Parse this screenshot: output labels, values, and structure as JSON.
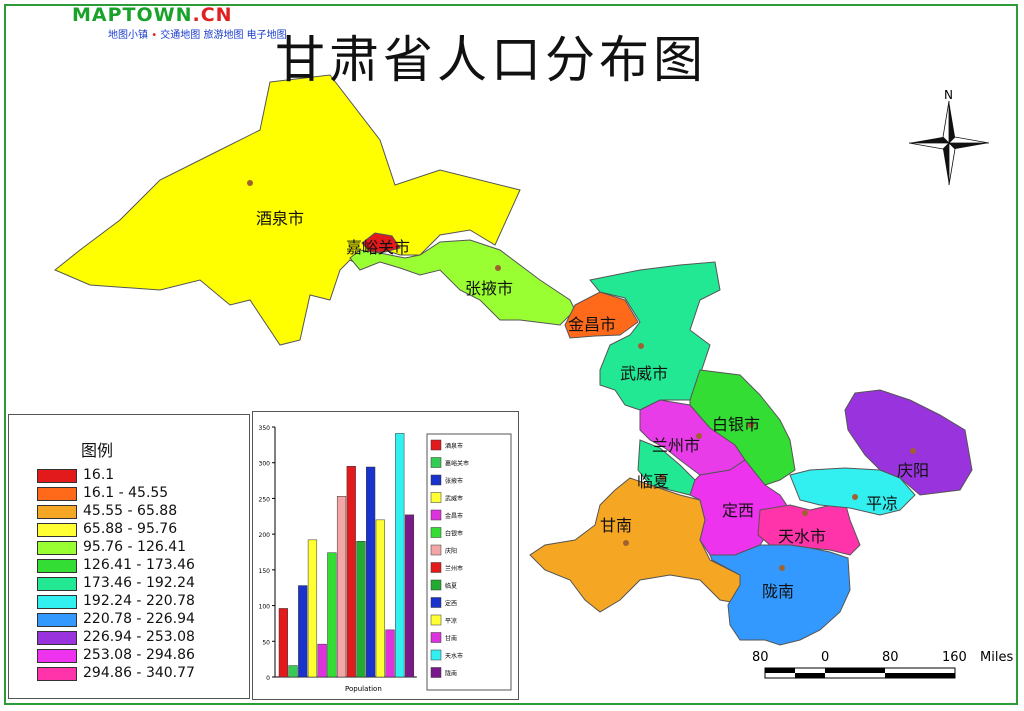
{
  "header": {
    "logo_main": "MAPTOWN",
    "logo_suffix": ".CN",
    "links": [
      "地图小镇",
      "交通地图",
      "旅游地图",
      "电子地图"
    ],
    "title": "甘肃省人口分布图"
  },
  "compass": {
    "north_label": "N"
  },
  "regions": [
    {
      "name": "酒泉市",
      "color": "#ffff00"
    },
    {
      "name": "嘉峪关市",
      "color": "#e31a1c"
    },
    {
      "name": "张掖市",
      "color": "#99ff33"
    },
    {
      "name": "金昌市",
      "color": "#ff6a1a"
    },
    {
      "name": "武威市",
      "color": "#22e894"
    },
    {
      "name": "白银市",
      "color": "#33dd33"
    },
    {
      "name": "兰州市",
      "color": "#e83ce8"
    },
    {
      "name": "临夏",
      "color": "#22e894"
    },
    {
      "name": "甘南",
      "color": "#f5a623"
    },
    {
      "name": "定西",
      "color": "#ee33ee"
    },
    {
      "name": "天水市",
      "color": "#ff33aa"
    },
    {
      "name": "陇南",
      "color": "#3399ff"
    },
    {
      "name": "平凉",
      "color": "#33f0f0"
    },
    {
      "name": "庆阳",
      "color": "#9933dd"
    }
  ],
  "legend": {
    "title": "图例",
    "items": [
      {
        "label": "16.1",
        "color": "#e31a1c"
      },
      {
        "label": "16.1 - 45.55",
        "color": "#ff6a1a"
      },
      {
        "label": "45.55 - 65.88",
        "color": "#f5a623"
      },
      {
        "label": "65.88 - 95.76",
        "color": "#ffff33"
      },
      {
        "label": "95.76 - 126.41",
        "color": "#99ff33"
      },
      {
        "label": "126.41 - 173.46",
        "color": "#33dd33"
      },
      {
        "label": "173.46 - 192.24",
        "color": "#22e894"
      },
      {
        "label": "192.24 - 220.78",
        "color": "#33f0f0"
      },
      {
        "label": "220.78 - 226.94",
        "color": "#3399ff"
      },
      {
        "label": "226.94 - 253.08",
        "color": "#9933dd"
      },
      {
        "label": "253.08 - 294.86",
        "color": "#ee33ee"
      },
      {
        "label": "294.86 - 340.77",
        "color": "#ff33aa"
      }
    ]
  },
  "chart_data": {
    "type": "bar",
    "xlabel": "Population",
    "ylim": [
      0,
      350
    ],
    "yticks": [
      0,
      50,
      100,
      150,
      200,
      250,
      300,
      350
    ],
    "series": [
      {
        "name": "酒泉市",
        "value": 96,
        "color": "#e31a1c"
      },
      {
        "name": "嘉峪关市",
        "value": 16,
        "color": "#33cc55"
      },
      {
        "name": "张掖市",
        "value": 128,
        "color": "#1a33cc"
      },
      {
        "name": "武威市",
        "value": 192,
        "color": "#ffff33"
      },
      {
        "name": "金昌市",
        "value": 46,
        "color": "#dd33dd"
      },
      {
        "name": "白银市",
        "value": 174,
        "color": "#33dd33"
      },
      {
        "name": "庆阳",
        "value": 253,
        "color": "#f4a6a6"
      },
      {
        "name": "兰州市",
        "value": 295,
        "color": "#e31a1c"
      },
      {
        "name": "临夏",
        "value": 190,
        "color": "#22aa33"
      },
      {
        "name": "定西",
        "value": 294,
        "color": "#1a33cc"
      },
      {
        "name": "平凉",
        "value": 220,
        "color": "#ffff33"
      },
      {
        "name": "甘南",
        "value": 66,
        "color": "#dd33dd"
      },
      {
        "name": "天水市",
        "value": 341,
        "color": "#33f0f0"
      },
      {
        "name": "陇南",
        "value": 227,
        "color": "#7a1a8a"
      }
    ],
    "legend_labels": [
      "酒泉市",
      "嘉峪关市",
      "张掖市",
      "武威市",
      "金昌市",
      "白银市",
      "庆阳",
      "兰州市",
      "临夏",
      "定西",
      "平凉",
      "甘南",
      "天水市",
      "陇南"
    ]
  },
  "scalebar": {
    "labels": [
      "80",
      "0",
      "80",
      "160"
    ],
    "unit": "Miles"
  }
}
